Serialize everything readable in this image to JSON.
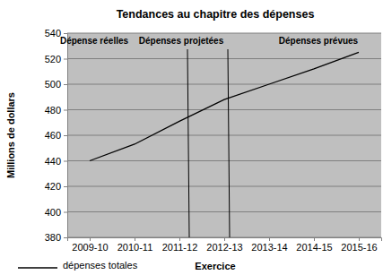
{
  "chart_data": {
    "type": "line",
    "title": "Tendances au chapitre des dépenses",
    "x_label": "Exercice",
    "y_label": "Millions de dollars",
    "categories": [
      "2009-10",
      "2010-11",
      "2011-12",
      "2012-13",
      "2013-14",
      "2014-15",
      "2015-16"
    ],
    "series": [
      {
        "name": "dépenses totales",
        "color": "#000000",
        "values": [
          440,
          453,
          471,
          488,
          500,
          512,
          525
        ]
      }
    ],
    "ylim": [
      380,
      540
    ],
    "yticks": [
      380,
      400,
      420,
      440,
      460,
      480,
      500,
      520,
      540
    ],
    "grid": true,
    "legend": "lower left",
    "annotations": [
      "Dépense réelles",
      "Dépenses projetées",
      "Dépenses prévues"
    ]
  }
}
